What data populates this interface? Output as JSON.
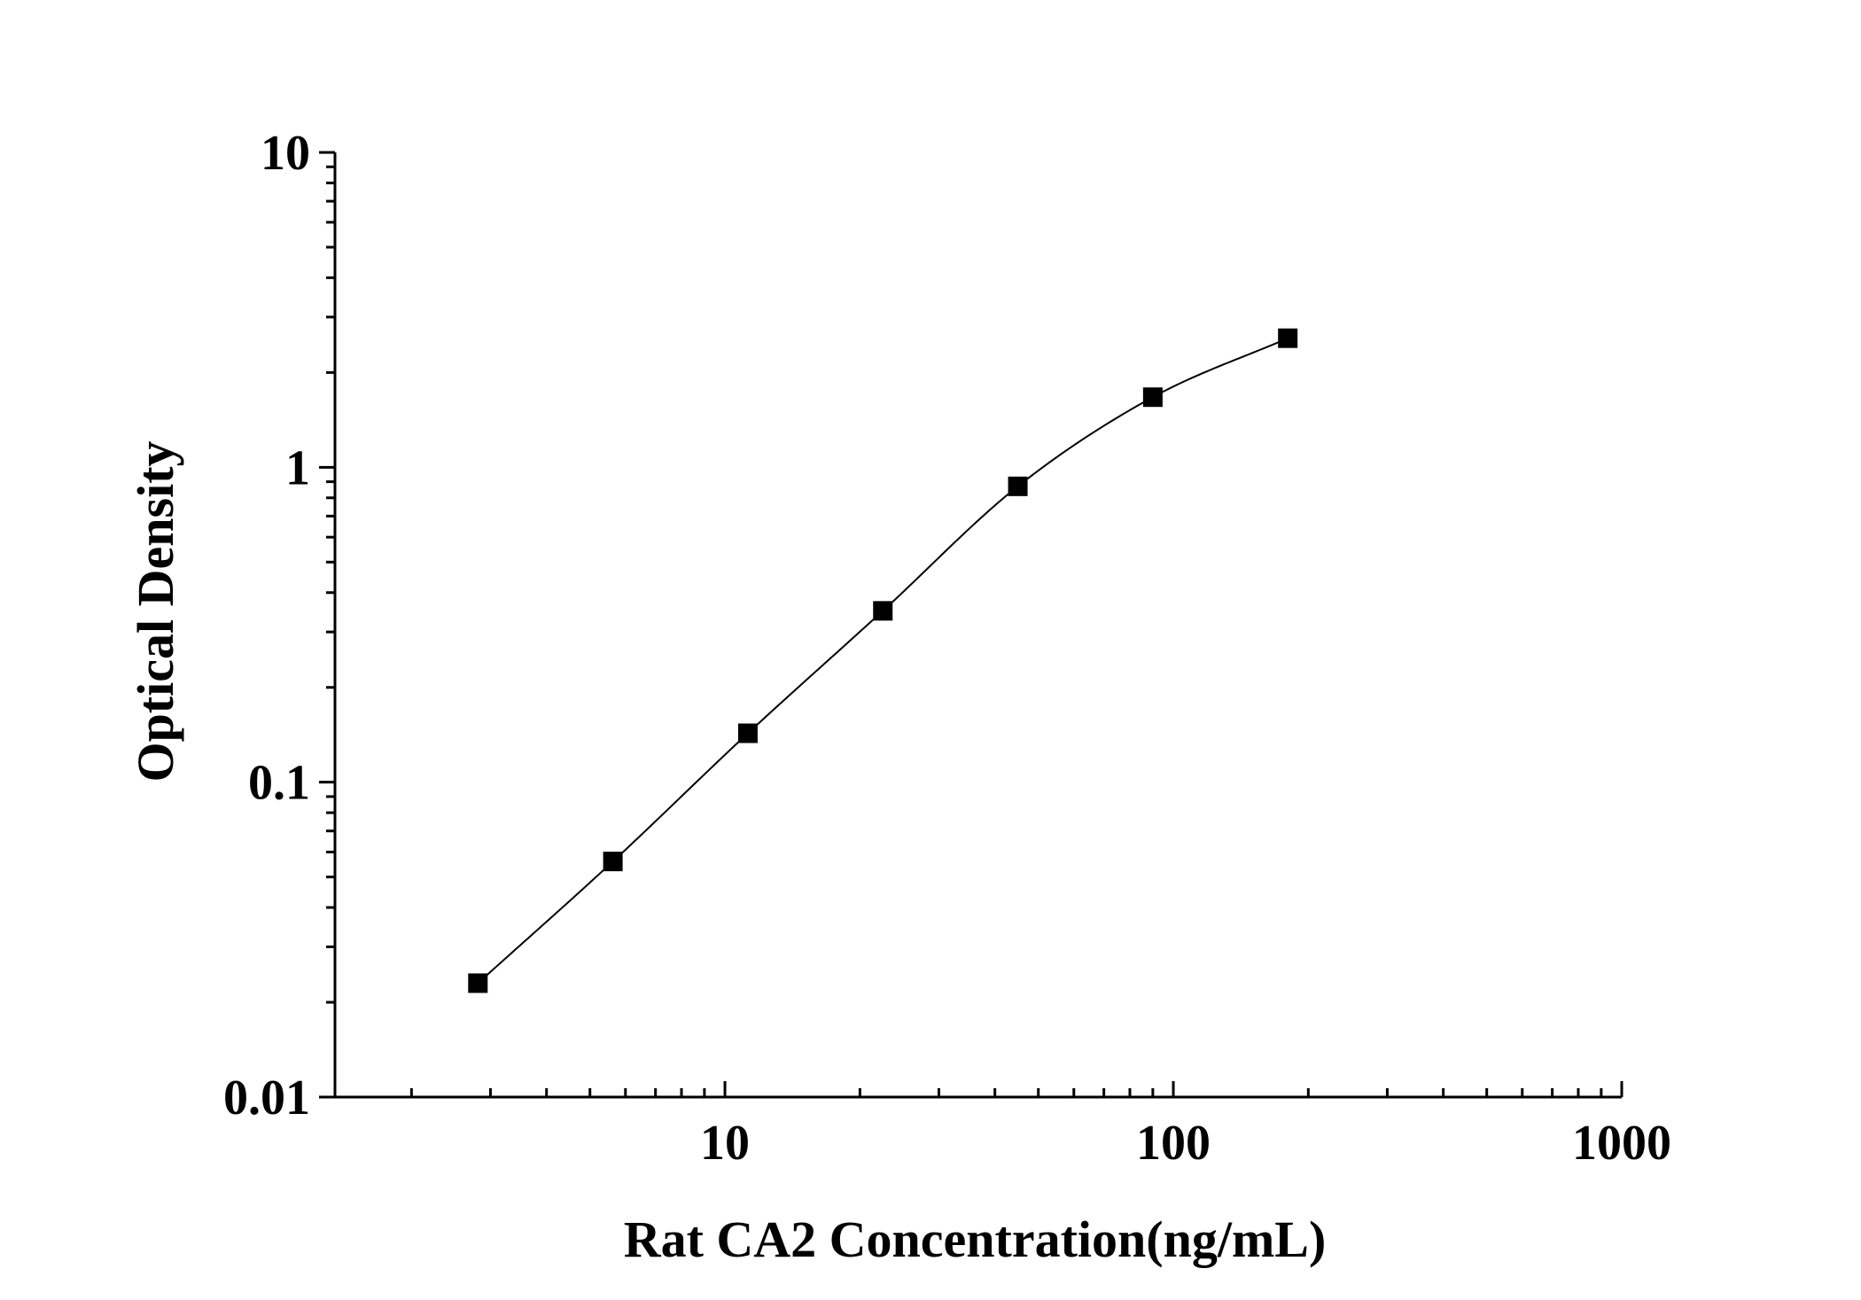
{
  "chart_data": {
    "type": "scatter",
    "xlabel": "Rat CA2 Concentration(ng/mL)",
    "ylabel": "Optical Density",
    "xscale": "log",
    "yscale": "log",
    "xlim": [
      1.35,
      1000
    ],
    "ylim": [
      0.01,
      10
    ],
    "xtick_labels": [
      "10",
      "100",
      "1000"
    ],
    "ytick_labels": [
      "0.01",
      "0.1",
      "1",
      "10"
    ],
    "x": [
      2.8125,
      5.625,
      11.25,
      22.5,
      45,
      90,
      180
    ],
    "y": [
      0.023,
      0.056,
      0.143,
      0.35,
      0.87,
      1.67,
      2.57
    ],
    "fit_curve": true,
    "grid": false,
    "legend": "none",
    "colors": {
      "marker": "#000000",
      "line": "#000000",
      "axis": "#000000"
    }
  }
}
